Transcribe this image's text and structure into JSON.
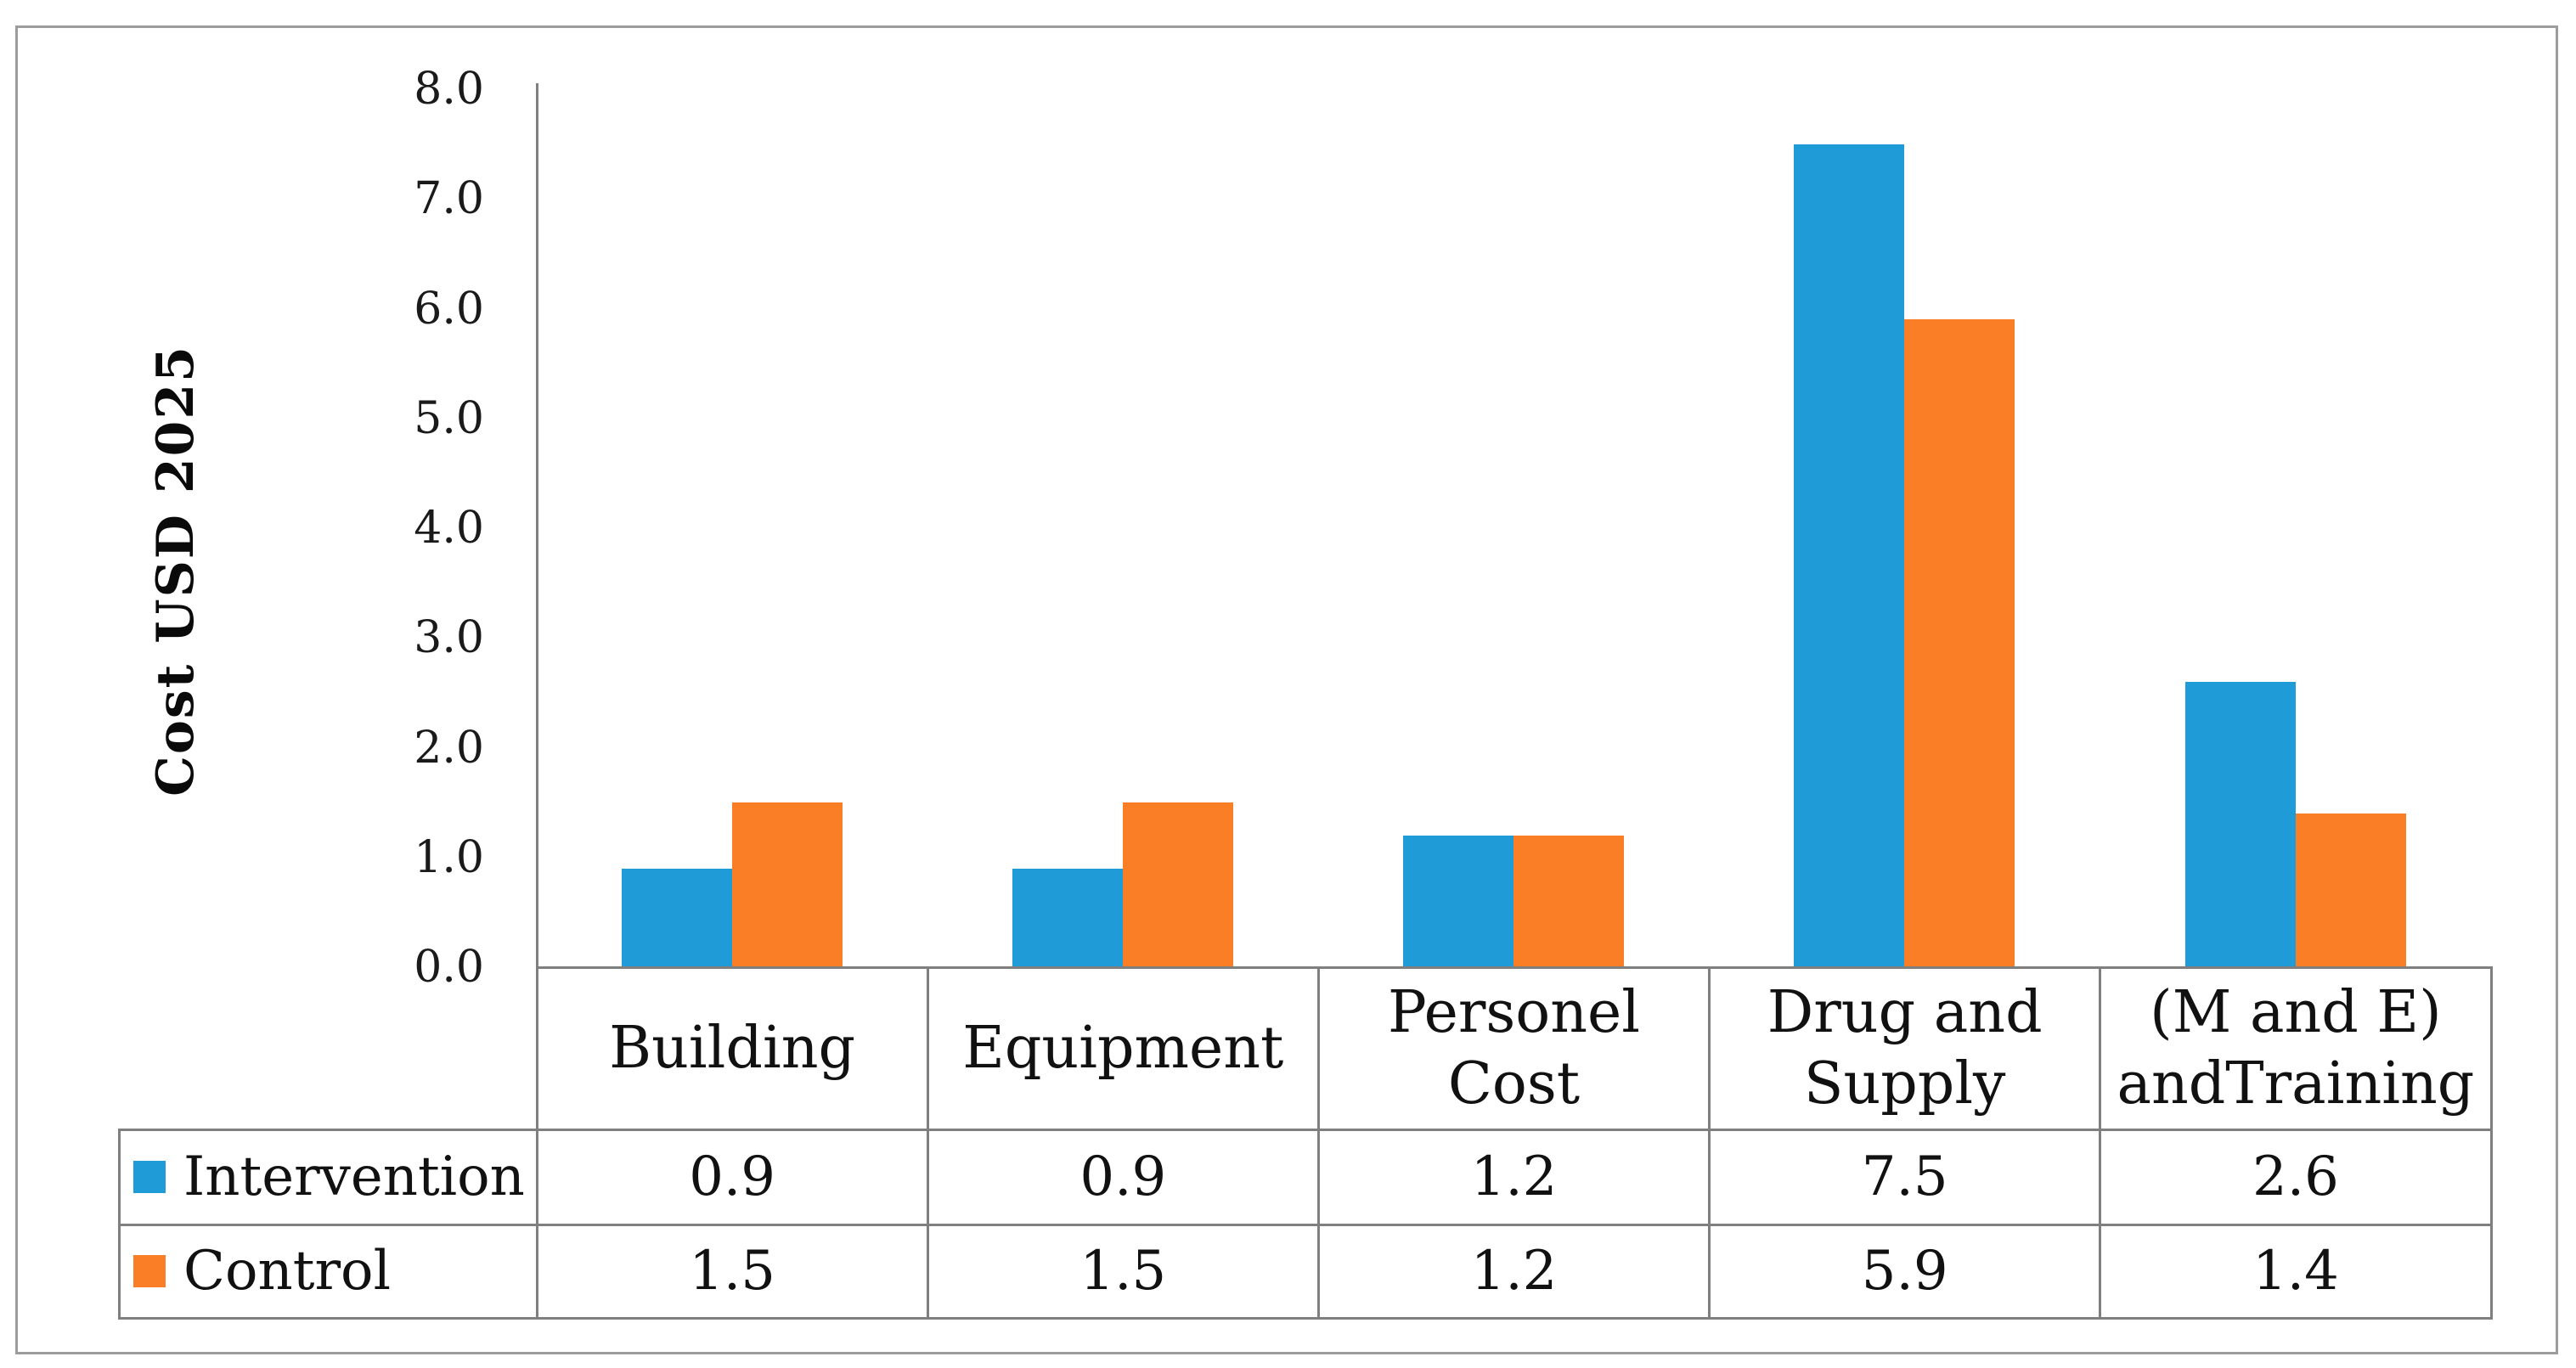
{
  "figure": {
    "background": "#ffffff",
    "border_color": "#9c9c9c",
    "grid_line_color": "#7f7f7f",
    "axis_line_color": "#808080",
    "text_color": "#111111"
  },
  "chart_data": {
    "type": "bar",
    "title": "",
    "xlabel": "",
    "ylabel": "Cost USD 2025",
    "ylim": [
      0,
      8
    ],
    "y_tick_step": 1.0,
    "grid": false,
    "legend_position": "table-left-column",
    "categories": [
      "Building",
      "Equipment",
      "Personel\nCost",
      "Drug and\nSupply",
      "(M and E)\nandTraining"
    ],
    "series": [
      {
        "name": "Intervention",
        "color": "#1f9cd7",
        "values": [
          0.9,
          0.9,
          1.2,
          7.5,
          2.6
        ]
      },
      {
        "name": "Control",
        "color": "#f97e26",
        "values": [
          1.5,
          1.5,
          1.2,
          5.9,
          1.4
        ]
      }
    ],
    "y_ticks": [
      "8.0",
      "7.0",
      "6.0",
      "5.0",
      "4.0",
      "3.0",
      "2.0",
      "1.0",
      "0.0"
    ]
  },
  "table": {
    "row_labels": [
      "Intervention",
      "Control"
    ],
    "rows": [
      [
        "0.9",
        "0.9",
        "1.2",
        "7.5",
        "2.6"
      ],
      [
        "1.5",
        "1.5",
        "1.2",
        "5.9",
        "1.4"
      ]
    ]
  }
}
